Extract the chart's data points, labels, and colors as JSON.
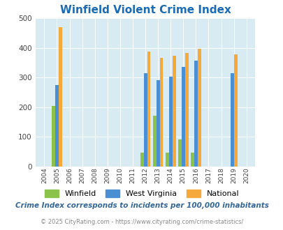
{
  "title": "Winfield Violent Crime Index",
  "years": [
    2004,
    2005,
    2006,
    2007,
    2008,
    2009,
    2010,
    2011,
    2012,
    2013,
    2014,
    2015,
    2016,
    2017,
    2018,
    2019,
    2020
  ],
  "winfield": [
    null,
    205,
    null,
    null,
    null,
    null,
    null,
    null,
    47,
    172,
    47,
    91,
    47,
    null,
    null,
    null,
    null
  ],
  "west_virginia": [
    null,
    275,
    null,
    null,
    null,
    null,
    null,
    null,
    315,
    291,
    304,
    337,
    357,
    null,
    null,
    314,
    null
  ],
  "national": [
    null,
    470,
    null,
    null,
    null,
    null,
    null,
    null,
    387,
    366,
    375,
    383,
    397,
    null,
    null,
    379,
    null
  ],
  "winfield_color": "#8bc34a",
  "wv_color": "#4a8fd4",
  "national_color": "#f5a93a",
  "plot_bg_color": "#d8eaf2",
  "ylim": [
    0,
    500
  ],
  "yticks": [
    0,
    100,
    200,
    300,
    400,
    500
  ],
  "title_color": "#1a6bb5",
  "subtitle": "Crime Index corresponds to incidents per 100,000 inhabitants",
  "subtitle_color": "#336699",
  "footer": "© 2025 CityRating.com - https://www.cityrating.com/crime-statistics/",
  "footer_color": "#888888",
  "bar_width": 0.27,
  "legend_labels": [
    "Winfield",
    "West Virginia",
    "National"
  ]
}
